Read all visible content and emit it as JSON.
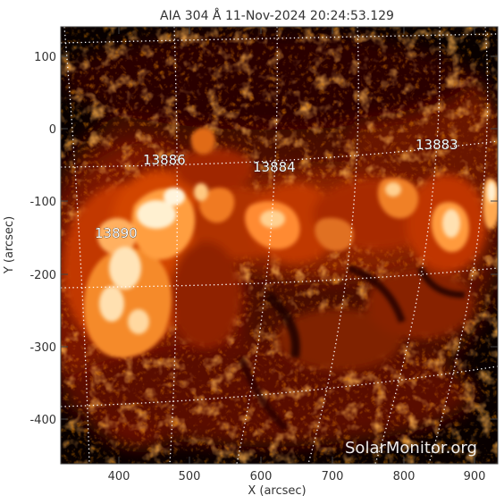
{
  "title": "AIA 304 Å 11-Nov-2024  20:24:53.129",
  "x_axis_label": "X (arcsec)",
  "y_axis_label": "Y (arcsec)",
  "x_ticks": [
    "400",
    "500",
    "600",
    "700",
    "800",
    "900"
  ],
  "y_ticks": [
    "100",
    "0",
    "-100",
    "-200",
    "-300",
    "-400"
  ],
  "active_regions": [
    "13886",
    "13884",
    "13883",
    "13890"
  ],
  "watermark": "SolarMonitor.org",
  "colors": {
    "background": "#000000",
    "plasma_dim": "#5a0a00",
    "plasma_mid": "#c23a00",
    "plasma_bright": "#ff9a3a",
    "plasma_hot": "#fff2d8",
    "grid": "#ffffff"
  }
}
